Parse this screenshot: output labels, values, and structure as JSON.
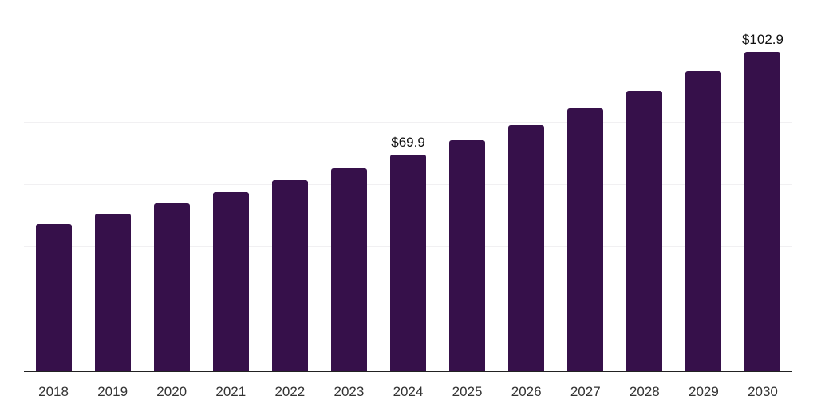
{
  "chart_data": {
    "type": "bar",
    "title": "",
    "xlabel": "",
    "ylabel": "",
    "categories": [
      "2018",
      "2019",
      "2020",
      "2021",
      "2022",
      "2023",
      "2024",
      "2025",
      "2026",
      "2027",
      "2028",
      "2029",
      "2030"
    ],
    "values": [
      47.5,
      50.8,
      54.1,
      57.6,
      61.5,
      65.3,
      69.9,
      74.4,
      79.4,
      84.8,
      90.4,
      96.8,
      102.9
    ],
    "data_labels": {
      "2024": "$69.9",
      "2030": "$102.9"
    },
    "ylim": [
      0,
      120
    ],
    "gridlines": [
      20,
      40,
      60,
      80,
      100,
      120
    ],
    "grid_on": true,
    "legend_position": "none",
    "colors": {
      "bar": "#36104a",
      "grid": "#f1f0f2",
      "axis": "#222222",
      "value_label": "#111111",
      "tick_label": "#333333",
      "background": "#ffffff"
    }
  }
}
